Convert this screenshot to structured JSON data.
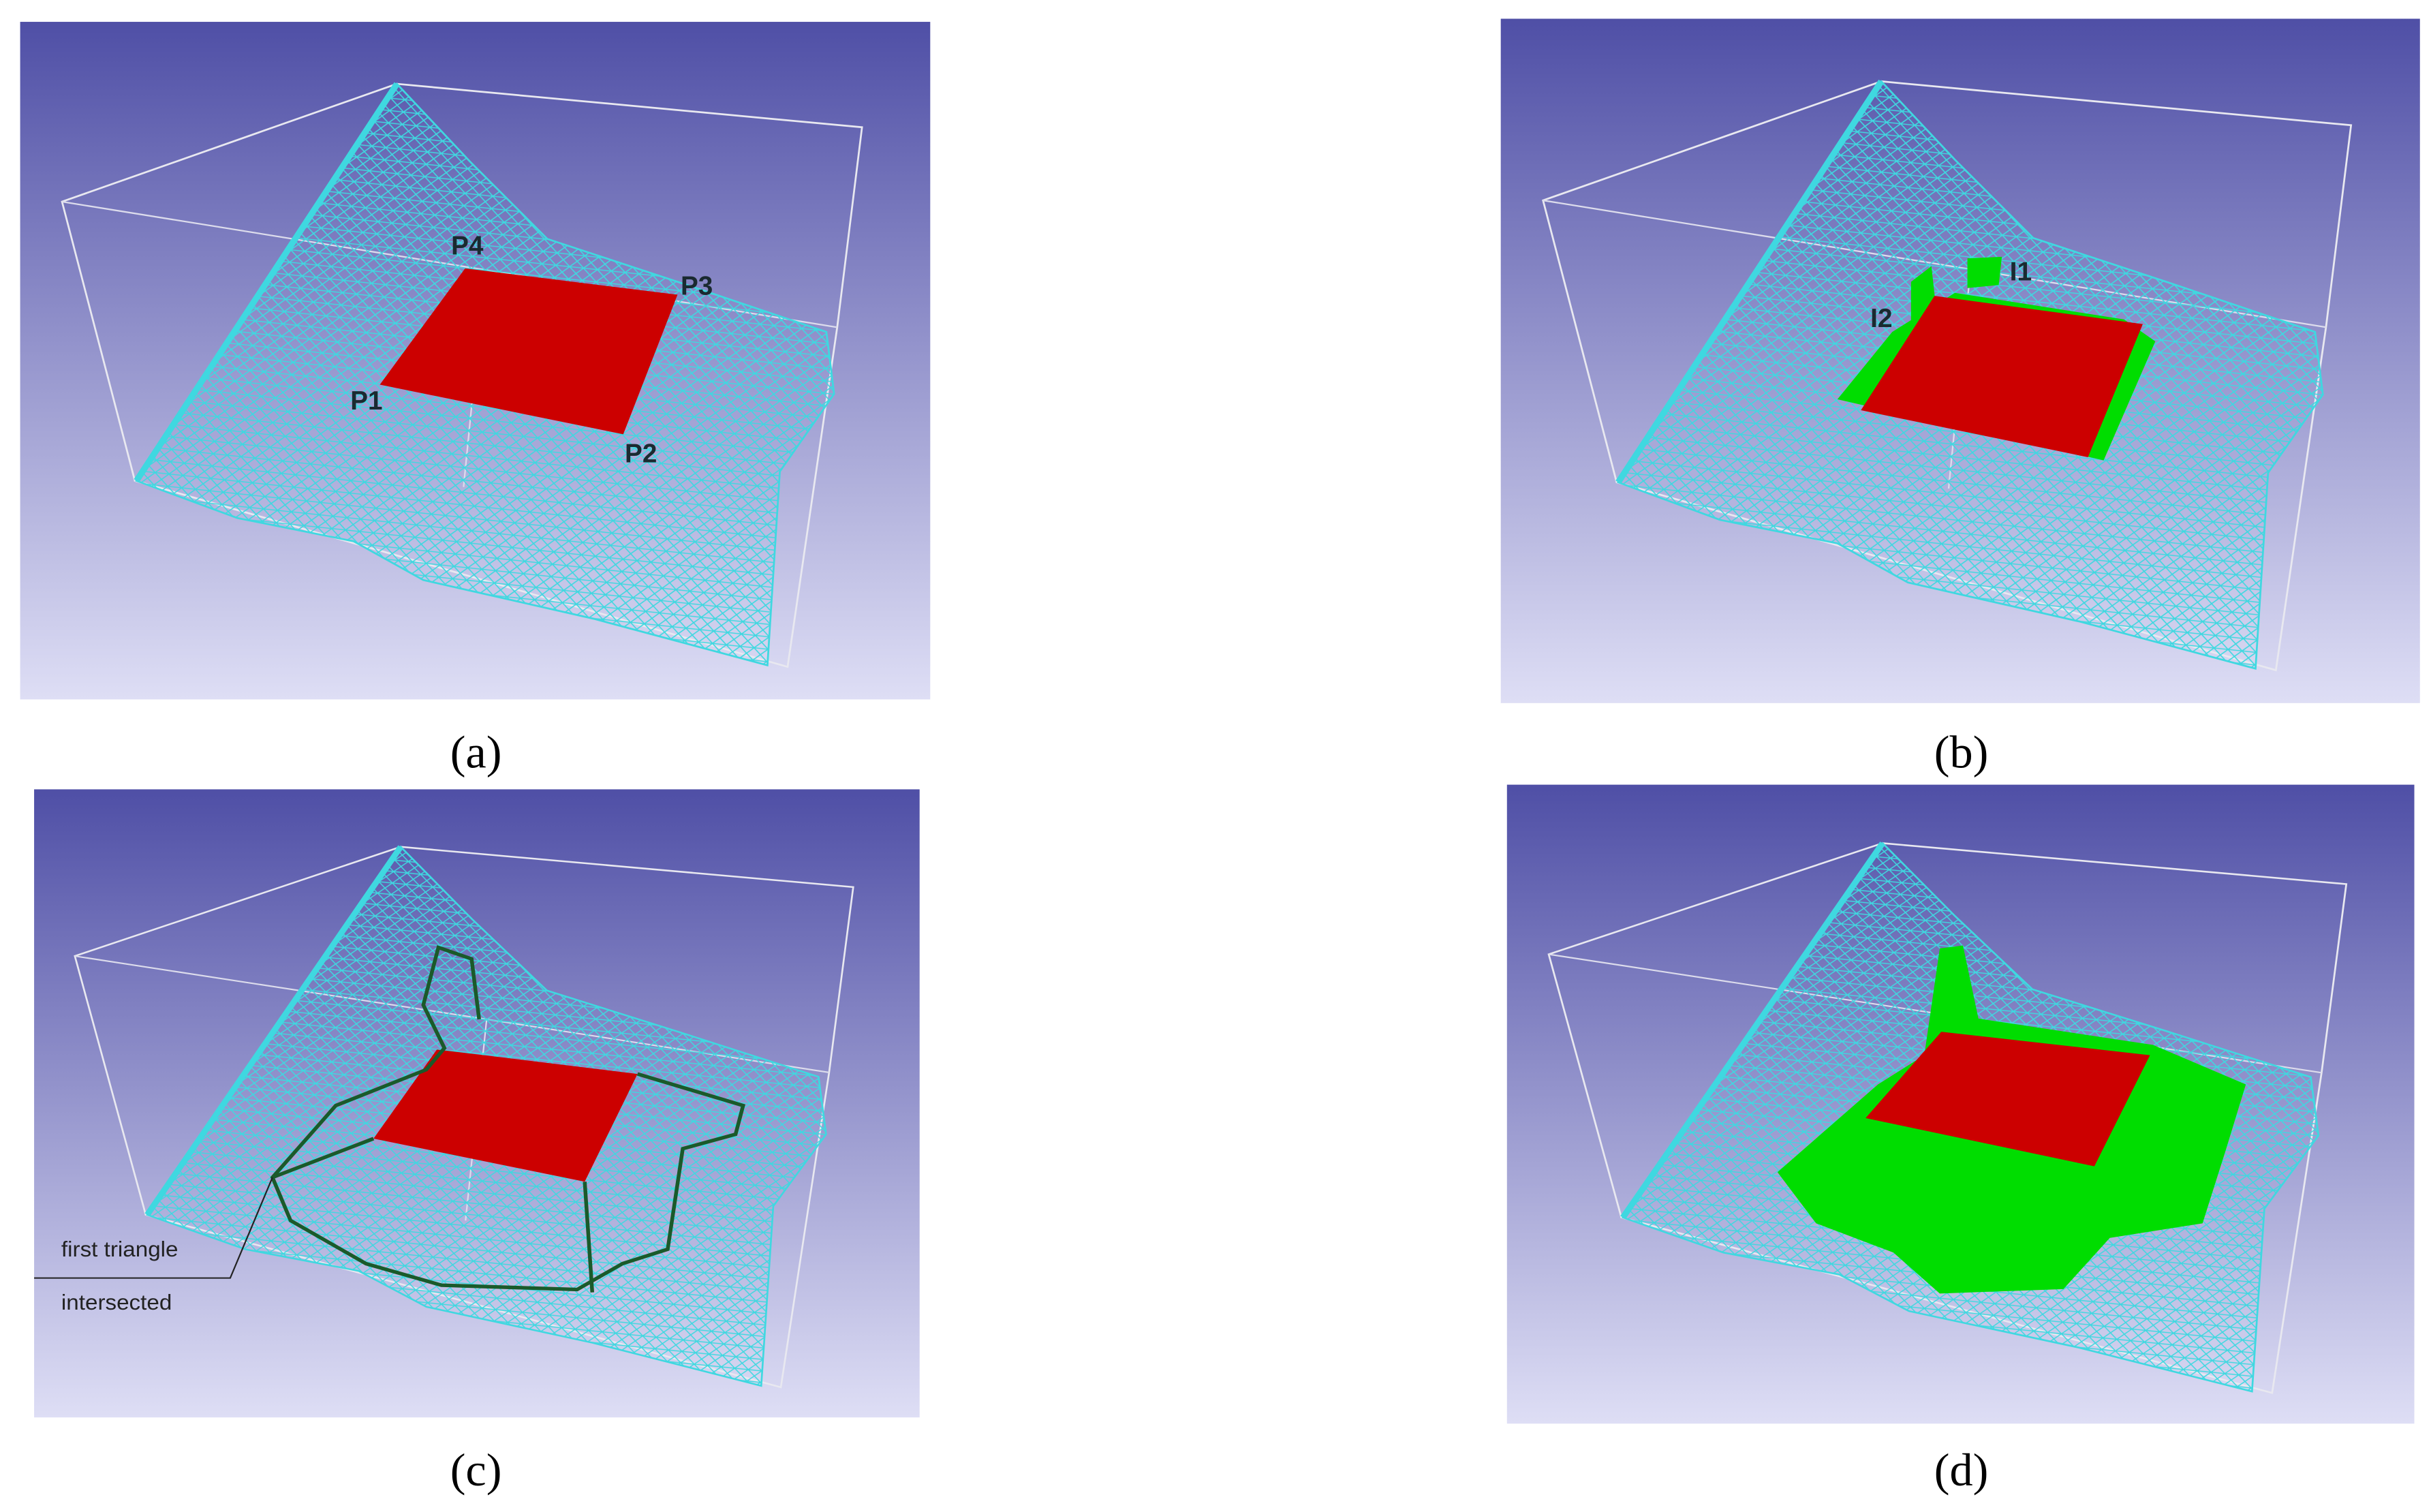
{
  "panels": [
    {
      "caption": "(a)",
      "labels": [
        "P4",
        "P3",
        "P1",
        "P2"
      ]
    },
    {
      "caption": "(b)",
      "labels": [
        "I1",
        "I2"
      ]
    },
    {
      "caption": "(c)",
      "labels": [
        "first triangle",
        "intersected"
      ]
    },
    {
      "caption": "(d)",
      "labels": []
    }
  ]
}
